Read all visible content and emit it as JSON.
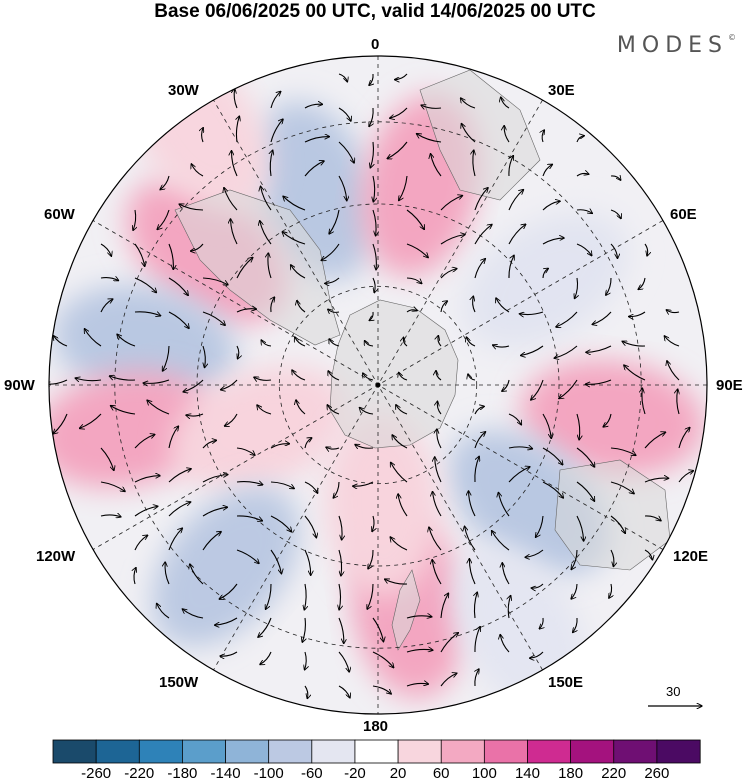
{
  "title": "Base 06/06/2025 00 UTC, valid 14/06/2025 00 UTC",
  "brand": "MODES",
  "brand_mark": "©",
  "longitude_labels": {
    "n0": "0",
    "n30e": "30E",
    "n60e": "60E",
    "n90e": "90E",
    "n120e": "120E",
    "n150e": "150E",
    "n180": "180",
    "n150w": "150W",
    "n120w": "120W",
    "n90w": "90W",
    "n60w": "60W",
    "n30w": "30W"
  },
  "reference_vector": "30",
  "colorbar": {
    "labels": [
      "-260",
      "-220",
      "-180",
      "-140",
      "-100",
      "-60",
      "-20",
      "20",
      "60",
      "100",
      "140",
      "180",
      "220",
      "260"
    ],
    "colors": [
      "#1a4a6b",
      "#1d6595",
      "#2e82b8",
      "#5b9ecb",
      "#8fb4d8",
      "#bcc9e3",
      "#e4e6f1",
      "#ffffff",
      "#f8d6de",
      "#f3a9c2",
      "#ea72a8",
      "#cf2b91",
      "#a4127e",
      "#6f0f73",
      "#4b0a63"
    ]
  },
  "anomalies": [
    {
      "lon": -18,
      "r": 0.62,
      "val": -230
    },
    {
      "lon": 12,
      "r": 0.62,
      "val": 230
    },
    {
      "lon": -52,
      "r": 0.66,
      "val": 230
    },
    {
      "lon": 58,
      "r": 0.6,
      "val": -130
    },
    {
      "lon": -80,
      "r": 0.72,
      "val": -190
    },
    {
      "lon": 98,
      "r": 0.72,
      "val": 240
    },
    {
      "lon": -100,
      "r": 0.78,
      "val": 235
    },
    {
      "lon": -110,
      "r": 0.38,
      "val": 110
    },
    {
      "lon": 128,
      "r": 0.58,
      "val": -190
    },
    {
      "lon": -140,
      "r": 0.72,
      "val": -180
    },
    {
      "lon": 172,
      "r": 0.68,
      "val": 230
    },
    {
      "lon": 178,
      "r": 0.36,
      "val": 120
    },
    {
      "lon": 150,
      "r": 0.86,
      "val": -80
    },
    {
      "lon": -35,
      "r": 0.95,
      "val": 80
    }
  ]
}
